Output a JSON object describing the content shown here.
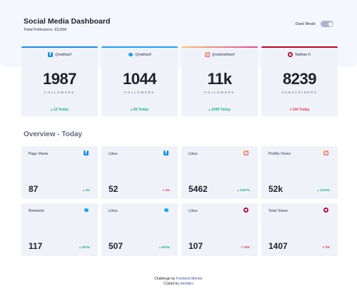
{
  "header": {
    "title": "Social Media Dashboard",
    "subtitle": "Total Followers: 23,004",
    "toggle_label": "Dark Mode"
  },
  "follower_cards": [
    {
      "icon": "facebook-icon",
      "color": "#178fe6",
      "handle": "@nathanf",
      "count": "1987",
      "unit": "FOLLOWERS",
      "delta": "12 Today",
      "trend": "up"
    },
    {
      "icon": "twitter-icon",
      "color": "#1ca0f2",
      "handle": "@nathanf",
      "count": "1044",
      "unit": "FOLLOWERS",
      "delta": "99 Today",
      "trend": "up"
    },
    {
      "icon": "instagram-icon",
      "color": "#df4996",
      "handle": "@realnathanf",
      "count": "11k",
      "unit": "FOLLOWERS",
      "delta": "1099 Today",
      "trend": "up"
    },
    {
      "icon": "youtube-icon",
      "color": "#c4032b",
      "handle": "Nathan F.",
      "count": "8239",
      "unit": "SUBSCRIBERS",
      "delta": "144 Today",
      "trend": "down"
    }
  ],
  "overview": {
    "title": "Overview - Today",
    "cards": [
      {
        "metric": "Page Views",
        "icon": "facebook-icon",
        "value": "87",
        "pct": "3%",
        "trend": "up"
      },
      {
        "metric": "Likes",
        "icon": "facebook-icon",
        "value": "52",
        "pct": "2%",
        "trend": "down"
      },
      {
        "metric": "Likes",
        "icon": "instagram-icon",
        "value": "5462",
        "pct": "2257%",
        "trend": "up"
      },
      {
        "metric": "Profile Views",
        "icon": "instagram-icon",
        "value": "52k",
        "pct": "1375%",
        "trend": "up"
      },
      {
        "metric": "Retweets",
        "icon": "twitter-icon",
        "value": "117",
        "pct": "303%",
        "trend": "up"
      },
      {
        "metric": "Likes",
        "icon": "twitter-icon",
        "value": "507",
        "pct": "553%",
        "trend": "up"
      },
      {
        "metric": "Likes",
        "icon": "youtube-icon",
        "value": "107",
        "pct": "19%",
        "trend": "down"
      },
      {
        "metric": "Total Views",
        "icon": "youtube-icon",
        "value": "1407",
        "pct": "3%",
        "trend": "down"
      }
    ]
  },
  "footer": {
    "line1_prefix": "Challenge by",
    "line1_link": "Frontend Mentor",
    "line2_prefix": "Coded by",
    "line2_link": "wmodes"
  }
}
